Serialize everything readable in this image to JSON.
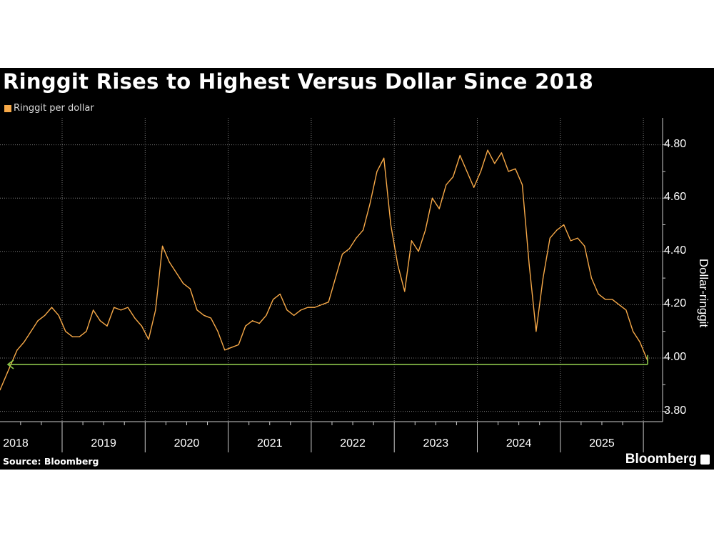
{
  "chart_data": {
    "type": "line",
    "title": "Ringgit Rises to Highest Versus Dollar Since 2018",
    "legend": [
      "Ringgit per dollar"
    ],
    "legend_placement": "top-left",
    "ylabel": "Dollar-ringgit",
    "ylim": [
      3.75,
      4.9
    ],
    "yticks": [
      "3.80",
      "4.00",
      "4.20",
      "4.40",
      "4.60",
      "4.80"
    ],
    "y_axis_side": "right",
    "xlim": [
      "2018-04",
      "2026-02"
    ],
    "xtick_labels": [
      "2018",
      "2019",
      "2020",
      "2021",
      "2022",
      "2023",
      "2024",
      "2025"
    ],
    "grid": true,
    "colors": {
      "series": "#f7a948",
      "reference_line": "#8bc34a",
      "background": "#000000"
    },
    "reference_line": {
      "value": 3.976,
      "style": "arrow pointing left to 2018 level"
    },
    "series": [
      {
        "name": "Ringgit per dollar",
        "x": [
          "2018-04",
          "2018-05",
          "2018-06",
          "2018-07",
          "2018-08",
          "2018-09",
          "2018-10",
          "2018-11",
          "2018-12",
          "2019-01",
          "2019-02",
          "2019-03",
          "2019-04",
          "2019-05",
          "2019-06",
          "2019-07",
          "2019-08",
          "2019-09",
          "2019-10",
          "2019-11",
          "2019-12",
          "2020-01",
          "2020-02",
          "2020-03",
          "2020-04",
          "2020-05",
          "2020-06",
          "2020-07",
          "2020-08",
          "2020-09",
          "2020-10",
          "2020-11",
          "2020-12",
          "2021-01",
          "2021-02",
          "2021-03",
          "2021-04",
          "2021-05",
          "2021-06",
          "2021-07",
          "2021-08",
          "2021-09",
          "2021-10",
          "2021-11",
          "2021-12",
          "2022-01",
          "2022-02",
          "2022-03",
          "2022-04",
          "2022-05",
          "2022-06",
          "2022-07",
          "2022-08",
          "2022-09",
          "2022-10",
          "2022-11",
          "2022-12",
          "2023-01",
          "2023-02",
          "2023-03",
          "2023-04",
          "2023-05",
          "2023-06",
          "2023-07",
          "2023-08",
          "2023-09",
          "2023-10",
          "2023-11",
          "2023-12",
          "2024-01",
          "2024-02",
          "2024-03",
          "2024-04",
          "2024-05",
          "2024-06",
          "2024-07",
          "2024-08",
          "2024-09",
          "2024-10",
          "2024-11",
          "2024-12",
          "2025-01",
          "2025-02",
          "2025-03",
          "2025-04",
          "2025-05",
          "2025-06",
          "2025-07",
          "2025-08",
          "2025-09",
          "2025-10",
          "2025-11",
          "2025-12",
          "2026-01"
        ],
        "values": [
          3.88,
          3.97,
          4.03,
          4.06,
          4.1,
          4.14,
          4.16,
          4.19,
          4.16,
          4.1,
          4.08,
          4.08,
          4.1,
          4.18,
          4.14,
          4.12,
          4.19,
          4.18,
          4.19,
          4.15,
          4.12,
          4.07,
          4.18,
          4.42,
          4.36,
          4.32,
          4.28,
          4.26,
          4.18,
          4.16,
          4.15,
          4.1,
          4.03,
          4.04,
          4.05,
          4.12,
          4.14,
          4.13,
          4.16,
          4.22,
          4.24,
          4.18,
          4.16,
          4.18,
          4.19,
          4.19,
          4.2,
          4.21,
          4.3,
          4.39,
          4.41,
          4.45,
          4.48,
          4.58,
          4.7,
          4.75,
          4.5,
          4.35,
          4.25,
          4.44,
          4.4,
          4.48,
          4.6,
          4.56,
          4.65,
          4.68,
          4.76,
          4.7,
          4.64,
          4.7,
          4.78,
          4.73,
          4.77,
          4.7,
          4.71,
          4.65,
          4.35,
          4.1,
          4.3,
          4.45,
          4.48,
          4.5,
          4.44,
          4.45,
          4.42,
          4.3,
          4.24,
          4.22,
          4.22,
          4.2,
          4.18,
          4.1,
          4.06,
          3.99
        ]
      }
    ]
  },
  "footer": {
    "source": "Source: Bloomberg",
    "logo": "Bloomberg"
  }
}
